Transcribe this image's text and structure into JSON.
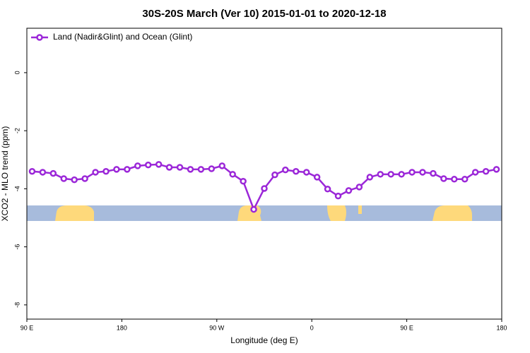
{
  "chart_data": {
    "type": "line",
    "title": "30S-20S March (Ver 10)   2015-01-01 to 2020-12-18",
    "xlabel": "Longitude (deg E)",
    "ylabel": "XCO2 - MLO trend (ppm)",
    "x": [
      95,
      105,
      115,
      125,
      135,
      145,
      155,
      165,
      175,
      185,
      195,
      205,
      215,
      225,
      235,
      245,
      255,
      265,
      275,
      285,
      295,
      305,
      315,
      325,
      335,
      345,
      355,
      365,
      375,
      385,
      395,
      405,
      415,
      425,
      435,
      445,
      455,
      465,
      475,
      485,
      495,
      505,
      515,
      525,
      535
    ],
    "series": [
      {
        "name": "Land (Nadir&Glint) and Ocean (Glint)",
        "color": "#9b27d8",
        "values": [
          -3.4,
          -3.43,
          -3.47,
          -3.65,
          -3.69,
          -3.65,
          -3.43,
          -3.4,
          -3.33,
          -3.33,
          -3.21,
          -3.18,
          -3.16,
          -3.26,
          -3.26,
          -3.33,
          -3.33,
          -3.31,
          -3.21,
          -3.5,
          -3.74,
          -4.71,
          -3.99,
          -3.52,
          -3.35,
          -3.4,
          -3.43,
          -3.6,
          -4.01,
          -4.25,
          -4.06,
          -3.94,
          -3.6,
          -3.5,
          -3.5,
          -3.5,
          -3.43,
          -3.43,
          -3.47,
          -3.65,
          -3.67,
          -3.67,
          -3.43,
          -3.4,
          -3.33
        ]
      }
    ],
    "xlim": [
      90,
      540
    ],
    "ylim": [
      -8.49,
      1.53
    ],
    "xticks": [
      {
        "value": 90,
        "label": "90 E"
      },
      180,
      {
        "value": 270,
        "label": "90 W"
      },
      {
        "value": 360,
        "label": "0"
      },
      {
        "value": 450,
        "label": "90 E"
      },
      {
        "value": 540,
        "label": "180"
      }
    ],
    "yticks": [
      0,
      -2,
      -4,
      -6,
      -8
    ],
    "legend": "top-left"
  }
}
